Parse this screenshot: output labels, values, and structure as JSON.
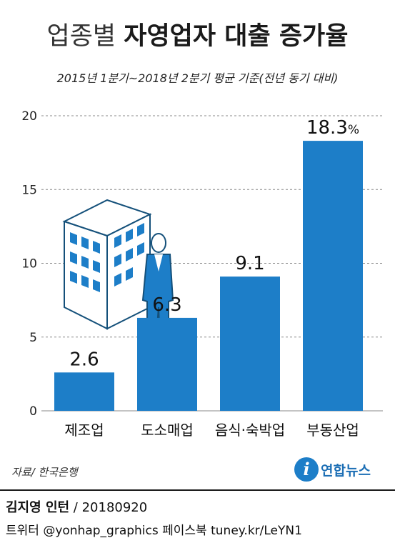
{
  "title": {
    "light": "업종별",
    "bold": "자영업자 대출 증가율"
  },
  "subtitle": "2015년 1분기~2018년 2분기 평균 기준(전년 동기 대비)",
  "chart_data": {
    "type": "bar",
    "title": "업종별 자영업자 대출 증가율",
    "subtitle": "2015년 1분기~2018년 2분기 평균 기준(전년 동기 대비)",
    "categories": [
      "제조업",
      "도소매업",
      "음식·숙박업",
      "부동산업"
    ],
    "values": [
      2.6,
      6.3,
      9.1,
      18.3
    ],
    "value_labels": [
      "2.6",
      "6.3",
      "9.1",
      "18.3"
    ],
    "unit_label": "%",
    "yticks": [
      "0",
      "5",
      "10",
      "15",
      "20"
    ],
    "ylim": [
      0,
      20
    ],
    "grid": "dashed-horizontal",
    "bar_color": "#1d7ec8",
    "xlabel": "",
    "ylabel": ""
  },
  "illustration": {
    "icon": "building-businessman-icon",
    "colors": {
      "fill": "#1d7ec8",
      "face": "#ffffff"
    }
  },
  "source": "자료/ 한국은행",
  "logo": {
    "mark": "i",
    "text": "연합뉴스"
  },
  "credit": {
    "author": "김지영 인턴",
    "date": " / 20180920"
  },
  "social": "트위터 @yonhap_graphics  페이스북 tuney.kr/LeYN1"
}
